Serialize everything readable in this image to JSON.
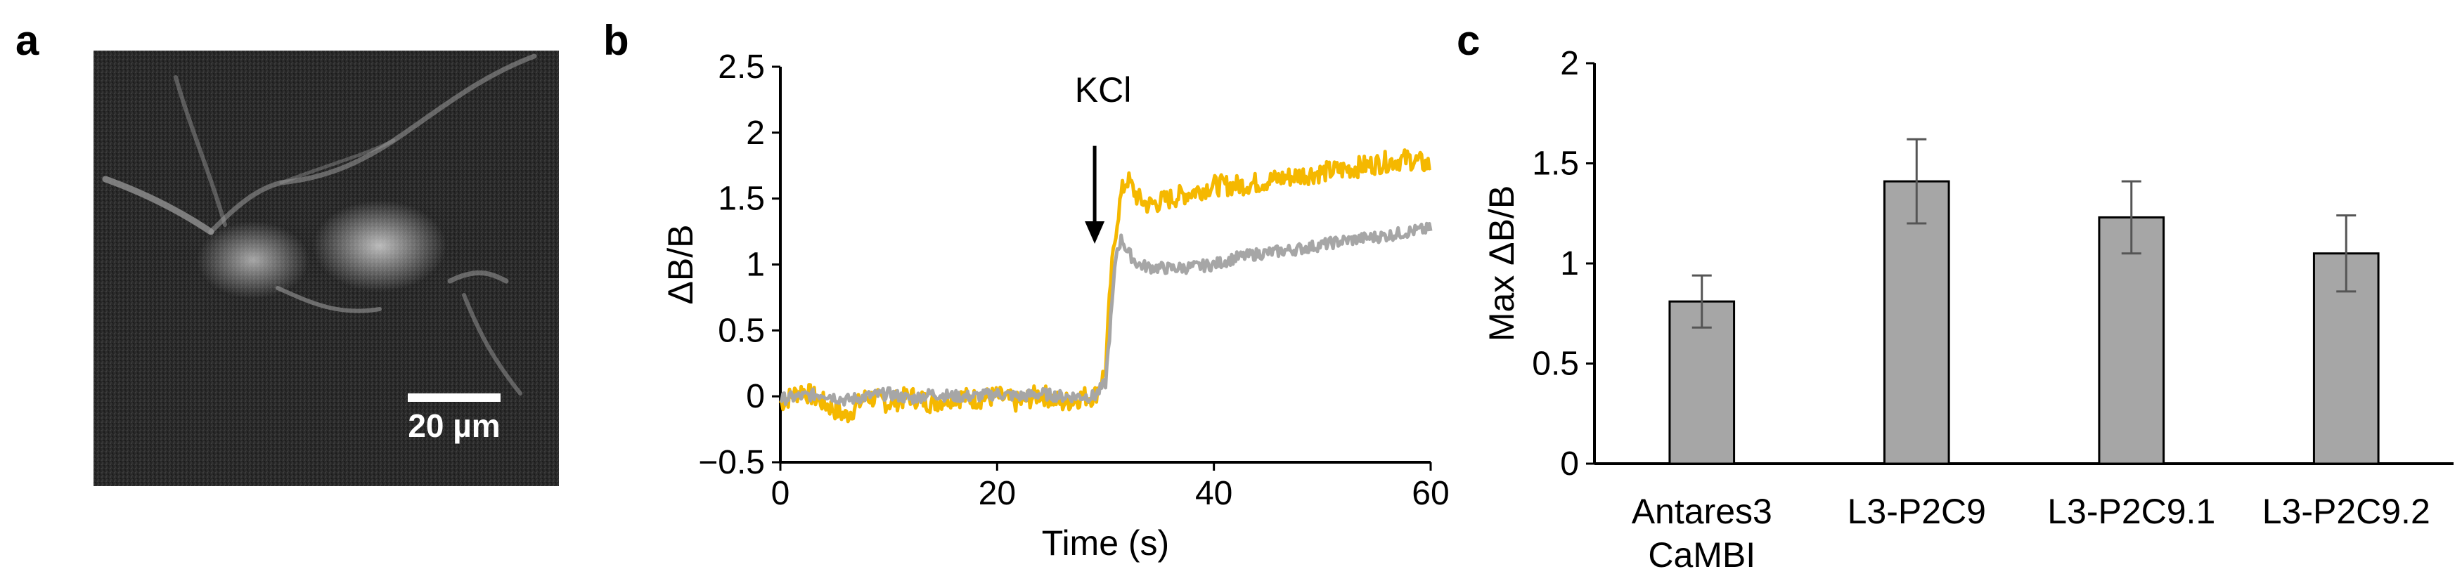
{
  "panels": {
    "a": {
      "letter": "a",
      "scale_bar_label": "20 µm",
      "colors": {
        "background": "#2a2a2a",
        "cell": "#bfbfbf",
        "scale_bar": "#ffffff"
      }
    },
    "b": {
      "letter": "b"
    },
    "c": {
      "letter": "c"
    }
  },
  "chart_data": [
    {
      "id": "b",
      "type": "line",
      "title": "",
      "xlabel": "Time (s)",
      "ylabel": "ΔB/B",
      "xlim": [
        0,
        60
      ],
      "ylim": [
        -0.5,
        2.5
      ],
      "x_ticks": [
        0,
        20,
        40,
        60
      ],
      "y_ticks": [
        -0.5,
        0,
        0.5,
        1,
        1.5,
        2,
        2.5
      ],
      "y_tick_labels": [
        "−0.5",
        "0",
        "0.5",
        "1",
        "1.5",
        "2",
        "2.5"
      ],
      "grid": false,
      "annotation": {
        "text": "KCl",
        "x": 29,
        "arrow_from_y": 1.9,
        "arrow_to_y": 1.2
      },
      "series": [
        {
          "name": "yellow trace",
          "color": "#f5b800",
          "x": [
            0,
            2,
            4,
            6,
            8,
            10,
            12,
            14,
            16,
            18,
            20,
            22,
            24,
            26,
            28,
            29,
            30,
            30.5,
            31,
            31.5,
            32,
            33,
            34,
            36,
            38,
            40,
            42,
            44,
            46,
            48,
            50,
            52,
            54,
            56,
            58,
            60
          ],
          "y": [
            -0.05,
            0.05,
            -0.05,
            -0.15,
            0.0,
            -0.05,
            0.0,
            -0.05,
            0.0,
            -0.02,
            0.0,
            -0.05,
            0.02,
            -0.05,
            0.0,
            0.0,
            0.2,
            0.9,
            1.3,
            1.55,
            1.65,
            1.5,
            1.45,
            1.5,
            1.55,
            1.6,
            1.6,
            1.62,
            1.65,
            1.68,
            1.7,
            1.72,
            1.75,
            1.78,
            1.8,
            1.75
          ]
        },
        {
          "name": "gray trace",
          "color": "#a6a6a6",
          "x": [
            0,
            2,
            4,
            6,
            8,
            10,
            12,
            14,
            16,
            18,
            20,
            22,
            24,
            26,
            28,
            29,
            30,
            30.5,
            31,
            31.5,
            32,
            33,
            34,
            36,
            38,
            40,
            42,
            44,
            46,
            48,
            50,
            52,
            54,
            56,
            58,
            60
          ],
          "y": [
            -0.02,
            0.0,
            0.02,
            -0.03,
            0.0,
            0.02,
            -0.02,
            0.02,
            0.0,
            0.0,
            0.02,
            0.0,
            0.02,
            0.0,
            0.0,
            0.0,
            0.1,
            0.6,
            1.1,
            1.2,
            1.1,
            1.0,
            0.98,
            0.97,
            0.98,
            1.0,
            1.05,
            1.08,
            1.1,
            1.12,
            1.15,
            1.18,
            1.2,
            1.22,
            1.25,
            1.27
          ]
        }
      ]
    },
    {
      "id": "c",
      "type": "bar",
      "title": "",
      "xlabel": "",
      "ylabel": "Max ΔB/B",
      "ylim": [
        0,
        2
      ],
      "y_ticks": [
        0,
        0.5,
        1,
        1.5,
        2
      ],
      "y_tick_labels": [
        "0",
        "0.5",
        "1",
        "1.5",
        "2"
      ],
      "grid": false,
      "bar_color": "#a6a6a6",
      "categories": [
        "Antares3 CaMBI",
        "L3-P2C9",
        "L3-P2C9.1",
        "L3-P2C9.2"
      ],
      "category_lines": [
        [
          "Antares3",
          "CaMBI"
        ],
        [
          "L3-P2C9"
        ],
        [
          "L3-P2C9.1"
        ],
        [
          "L3-P2C9.2"
        ]
      ],
      "values": [
        0.81,
        1.41,
        1.23,
        1.05
      ],
      "errors": [
        0.13,
        0.21,
        0.18,
        0.19
      ]
    }
  ]
}
